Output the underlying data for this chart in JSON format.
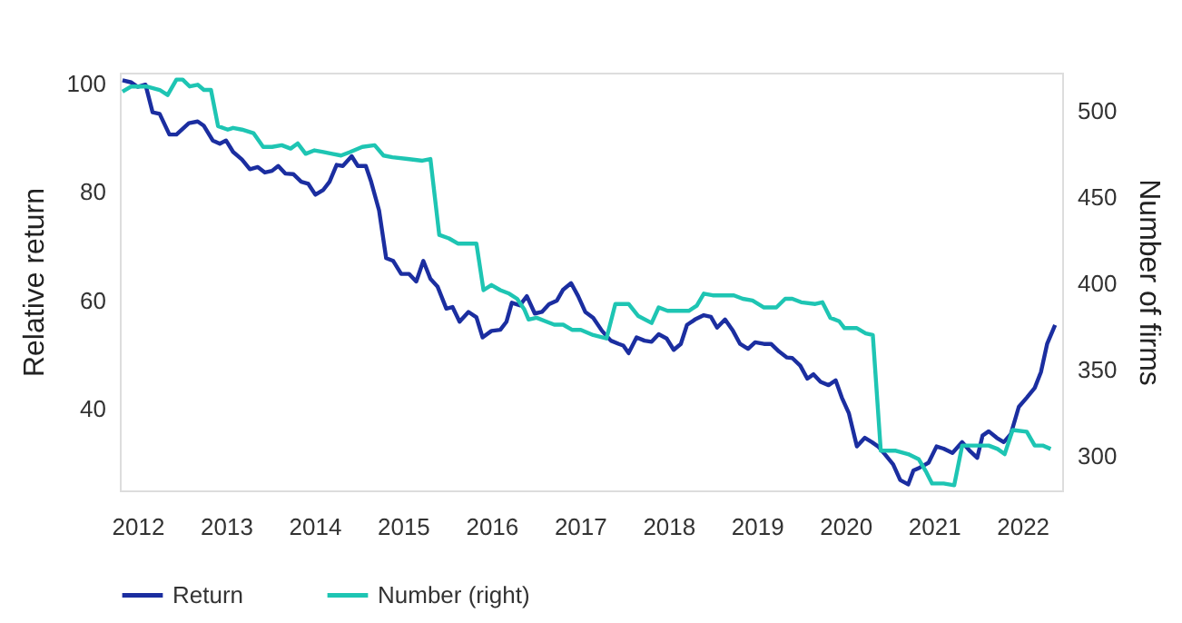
{
  "chart_data": {
    "type": "line",
    "ylabel": "Relative return",
    "y2label": "Number of firms",
    "xlim": [
      2011.8,
      2022.45
    ],
    "xticks": [
      2012,
      2013,
      2014,
      2015,
      2016,
      2017,
      2018,
      2019,
      2020,
      2021,
      2022
    ],
    "ylim": [
      25,
      102
    ],
    "yticks": [
      40,
      60,
      80,
      100
    ],
    "y2lim": [
      280,
      522
    ],
    "y2ticks": [
      300,
      350,
      400,
      450,
      500
    ],
    "legend": "bottom",
    "line_style": "solid",
    "series": [
      {
        "name": "Return",
        "color": "#1b2ea0",
        "axis": "y",
        "x": [
          2011.83,
          2011.93,
          2012.0,
          2012.09,
          2012.17,
          2012.25,
          2012.36,
          2012.44,
          2012.58,
          2012.68,
          2012.75,
          2012.85,
          2012.93,
          2013.0,
          2013.08,
          2013.18,
          2013.27,
          2013.36,
          2013.44,
          2013.52,
          2013.59,
          2013.67,
          2013.76,
          2013.85,
          2013.93,
          2014.01,
          2014.1,
          2014.17,
          2014.25,
          2014.32,
          2014.42,
          2014.49,
          2014.58,
          2014.64,
          2014.73,
          2014.81,
          2014.89,
          2014.98,
          2015.07,
          2015.15,
          2015.23,
          2015.31,
          2015.39,
          2015.49,
          2015.56,
          2015.64,
          2015.74,
          2015.83,
          2015.9,
          2016.0,
          2016.1,
          2016.17,
          2016.23,
          2016.32,
          2016.4,
          2016.49,
          2016.57,
          2016.65,
          2016.74,
          2016.81,
          2016.9,
          2016.98,
          2017.06,
          2017.15,
          2017.25,
          2017.35,
          2017.44,
          2017.49,
          2017.55,
          2017.64,
          2017.73,
          2017.81,
          2017.89,
          2017.98,
          2018.06,
          2018.14,
          2018.21,
          2018.3,
          2018.4,
          2018.48,
          2018.55,
          2018.64,
          2018.73,
          2018.81,
          2018.9,
          2018.98,
          2019.08,
          2019.16,
          2019.25,
          2019.34,
          2019.4,
          2019.49,
          2019.57,
          2019.64,
          2019.72,
          2019.81,
          2019.89,
          2019.96,
          2020.04,
          2020.13,
          2020.22,
          2020.3,
          2020.37,
          2020.45,
          2020.54,
          2020.62,
          2020.71,
          2020.77,
          2020.84,
          2020.94,
          2021.03,
          2021.11,
          2021.21,
          2021.32,
          2021.4,
          2021.49,
          2021.55,
          2021.62,
          2021.71,
          2021.79,
          2021.87,
          2021.96,
          2022.05,
          2022.14,
          2022.21,
          2022.28,
          2022.37
        ],
        "values": [
          100.6,
          100.2,
          99.4,
          99.8,
          94.7,
          94.4,
          90.6,
          90.6,
          92.7,
          93.0,
          92.2,
          89.5,
          88.9,
          89.5,
          87.4,
          86.0,
          84.2,
          84.6,
          83.6,
          83.9,
          84.8,
          83.4,
          83.3,
          81.9,
          81.5,
          79.5,
          80.4,
          81.9,
          85.0,
          84.8,
          86.6,
          84.8,
          84.8,
          81.9,
          76.6,
          67.8,
          67.3,
          64.9,
          64.9,
          63.5,
          67.3,
          64.0,
          62.6,
          58.5,
          58.8,
          56.1,
          57.9,
          56.9,
          53.2,
          54.4,
          54.6,
          56.1,
          59.6,
          59.1,
          60.8,
          57.6,
          57.9,
          59.3,
          60.0,
          62.0,
          63.2,
          60.8,
          57.9,
          56.8,
          54.4,
          52.6,
          52.0,
          51.7,
          50.3,
          53.2,
          52.6,
          52.4,
          53.8,
          53.0,
          50.9,
          52.0,
          55.5,
          56.5,
          57.3,
          57.0,
          55.0,
          56.5,
          54.4,
          52.0,
          51.1,
          52.3,
          52.0,
          52.0,
          50.6,
          49.5,
          49.4,
          48.0,
          45.6,
          46.4,
          45.0,
          44.4,
          45.3,
          42.1,
          39.2,
          33.1,
          34.7,
          33.9,
          33.1,
          31.6,
          29.8,
          26.9,
          26.1,
          28.7,
          29.2,
          30.1,
          33.1,
          32.7,
          31.9,
          33.9,
          32.4,
          31.0,
          35.1,
          35.9,
          34.7,
          33.9,
          35.4,
          40.4,
          42.1,
          43.9,
          46.8,
          52.0,
          55.5
        ]
      },
      {
        "name": "Number (right)",
        "color": "#1ec5b3",
        "axis": "y2",
        "x": [
          2011.83,
          2011.93,
          2012.1,
          2012.25,
          2012.34,
          2012.44,
          2012.51,
          2012.59,
          2012.68,
          2012.75,
          2012.83,
          2012.91,
          2013.02,
          2013.08,
          2013.18,
          2013.31,
          2013.42,
          2013.52,
          2013.63,
          2013.73,
          2013.81,
          2013.9,
          2014.0,
          2014.1,
          2014.2,
          2014.3,
          2014.4,
          2014.54,
          2014.68,
          2014.78,
          2014.88,
          2015.05,
          2015.22,
          2015.31,
          2015.41,
          2015.52,
          2015.62,
          2015.83,
          2015.91,
          2016.0,
          2016.1,
          2016.2,
          2016.29,
          2016.37,
          2016.42,
          2016.51,
          2016.61,
          2016.71,
          2016.81,
          2016.91,
          2017.01,
          2017.15,
          2017.3,
          2017.4,
          2017.55,
          2017.66,
          2017.81,
          2017.89,
          2017.99,
          2018.23,
          2018.32,
          2018.4,
          2018.5,
          2018.74,
          2018.84,
          2018.95,
          2019.08,
          2019.22,
          2019.32,
          2019.4,
          2019.5,
          2019.66,
          2019.74,
          2019.83,
          2019.93,
          2019.99,
          2020.13,
          2020.23,
          2020.31,
          2020.4,
          2020.57,
          2020.71,
          2020.83,
          2020.91,
          2020.98,
          2021.11,
          2021.23,
          2021.32,
          2021.45,
          2021.62,
          2021.72,
          2021.8,
          2021.89,
          2022.05,
          2022.14,
          2022.23,
          2022.32
        ],
        "values": [
          511,
          514,
          514,
          512,
          509,
          518,
          518,
          514,
          515,
          512,
          512,
          491,
          489,
          490,
          489,
          487,
          479,
          479,
          480,
          478,
          481,
          475,
          477,
          476,
          475,
          474,
          476,
          479,
          480,
          474,
          473,
          472,
          471,
          472,
          428,
          426,
          423,
          423,
          396,
          399,
          396,
          394,
          391,
          385,
          379,
          380,
          378,
          376,
          376,
          373,
          373,
          370,
          368,
          388,
          388,
          381,
          377,
          386,
          384,
          384,
          387,
          394,
          393,
          393,
          391,
          390,
          386,
          386,
          391,
          391,
          389,
          388,
          389,
          380,
          378,
          374,
          374,
          371,
          370,
          303,
          303,
          301,
          298,
          291,
          284,
          284,
          283,
          306,
          306,
          306,
          304,
          301,
          315,
          314,
          306,
          306,
          304
        ]
      }
    ]
  }
}
